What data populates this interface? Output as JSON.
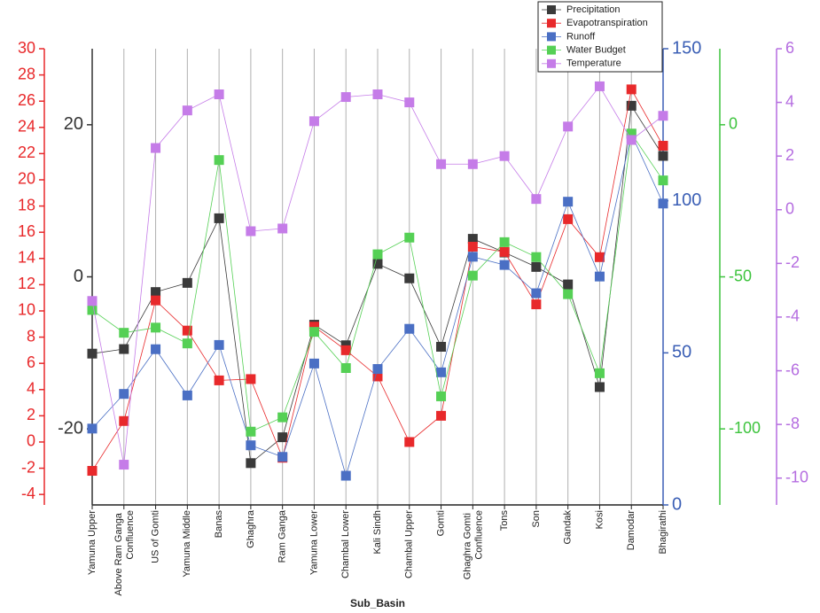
{
  "chart_data": {
    "type": "line",
    "x_label": "Sub_Basin",
    "categories": [
      "Yamuna Upper",
      "Above Ram Ganga Confluence",
      "US of Gomti",
      "Yamuna Middle",
      "Banas",
      "Ghaghra",
      "Ram Ganga",
      "Yamuna Lower",
      "Chambal Lower",
      "Kali Sindh",
      "Chambal Upper",
      "Gomti",
      "Ghaghra Gomti Confluence",
      "Tons",
      "Son",
      "Gandak",
      "Kosi",
      "Damodar",
      "Bhagirathi"
    ],
    "grid": true,
    "legend": "upper right",
    "axes": [
      {
        "color": "#333333",
        "ylim": [
          -30,
          30
        ],
        "yticks": [
          -20,
          0,
          20
        ]
      },
      {
        "color": "#e8292b",
        "ylim": [
          -4.8,
          30
        ],
        "yticks": [
          -4,
          -2,
          0,
          2,
          4,
          6,
          8,
          10,
          12,
          14,
          16,
          18,
          20,
          22,
          24,
          26,
          28,
          30
        ]
      },
      {
        "color": "#3b5fb5",
        "ylim": [
          0,
          150
        ],
        "yticks": [
          0,
          50,
          100,
          150
        ]
      },
      {
        "color": "#3ec43e",
        "ylim": [
          -125,
          25
        ],
        "yticks": [
          -100,
          -50,
          0
        ]
      },
      {
        "color": "#b56de0",
        "ylim": [
          -11,
          6
        ],
        "yticks": [
          -10,
          -8,
          -6,
          -4,
          -2,
          0,
          2,
          4,
          6
        ]
      }
    ],
    "series": [
      {
        "name": "Precipitation",
        "color": "#3a3a3a",
        "axis": 0,
        "values": [
          -10.1,
          -9.5,
          -2.0,
          -0.8,
          7.7,
          -24.5,
          -21.1,
          -6.3,
          -9.0,
          1.7,
          -0.2,
          -9.2,
          5.0,
          3.2,
          1.3,
          -1.0,
          -14.5,
          22.5,
          15.9
        ]
      },
      {
        "name": "Evapotranspiration",
        "color": "#e8292b",
        "axis": 1,
        "values": [
          -2.2,
          1.6,
          10.8,
          8.5,
          4.7,
          4.8,
          -1.2,
          8.8,
          7.0,
          5.0,
          0.0,
          2.0,
          14.9,
          14.5,
          10.5,
          17.0,
          14.1,
          26.9,
          22.6
        ]
      },
      {
        "name": "Runoff",
        "color": "#4a6fc4",
        "axis": 2,
        "values": [
          25.1,
          36.5,
          51.2,
          36.0,
          52.6,
          19.6,
          15.8,
          46.5,
          9.6,
          44.7,
          57.9,
          43.6,
          81.6,
          78.9,
          69.6,
          99.7,
          75.1,
          122,
          99.1
        ]
      },
      {
        "name": "Water Budget",
        "color": "#55d055",
        "axis": 3,
        "values": [
          -60.9,
          -68.4,
          -66.7,
          -71.9,
          -11.6,
          -100.9,
          -96.2,
          -68.1,
          -80.0,
          -42.6,
          -37.1,
          -89.3,
          -49.6,
          -38.6,
          -43.5,
          -55.7,
          -81.7,
          -2.9,
          -18.3
        ]
      },
      {
        "name": "Temperature",
        "color": "#c57ce8",
        "axis": 4,
        "values": [
          -3.4,
          -9.5,
          2.3,
          3.7,
          4.3,
          -0.8,
          -0.7,
          3.3,
          4.2,
          4.3,
          4.0,
          1.7,
          1.7,
          2.0,
          0.4,
          3.1,
          4.6,
          2.6,
          3.5
        ]
      }
    ]
  }
}
